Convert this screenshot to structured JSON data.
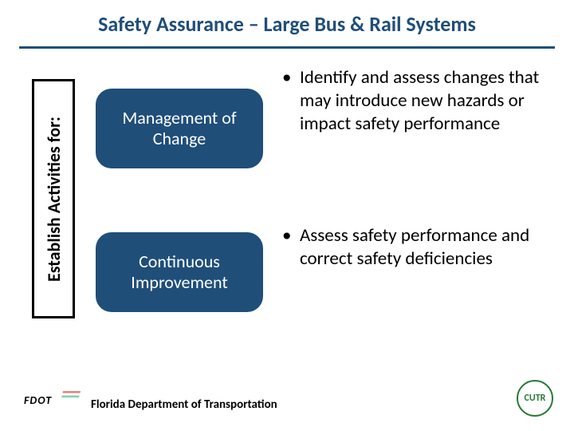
{
  "colors": {
    "accent": "#1f4e79",
    "title": "#1f4e79",
    "text": "#000000",
    "cutr_green": "#2a7a3a"
  },
  "title": "Safety Assurance – Large Bus & Rail Systems",
  "sidebar_label": "Establish Activities for:",
  "pills": [
    {
      "label": "Management of Change"
    },
    {
      "label": "Continuous Improvement"
    }
  ],
  "bullets": [
    "Identify and assess changes that may introduce new hazards or impact safety performance",
    "Assess safety performance and correct safety deficiencies"
  ],
  "footer": {
    "logo_text": "FDOT",
    "org": "Florida Department of Transportation",
    "right_logo": "CUTR"
  }
}
